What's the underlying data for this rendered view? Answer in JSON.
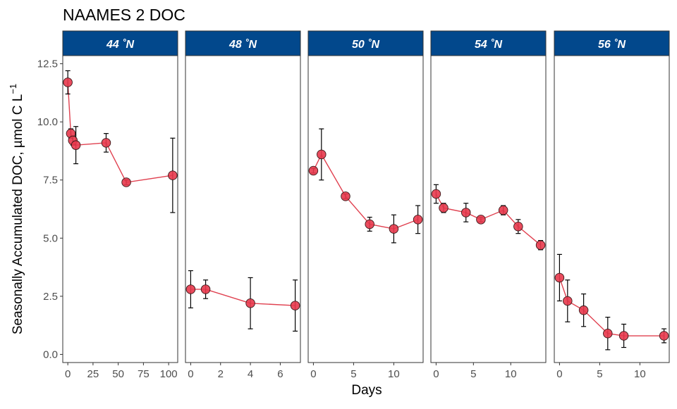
{
  "chart_data": {
    "type": "line",
    "title": "NAAMES 2 DOC",
    "xlabel": "Days",
    "ylabel": "Seasonally Accumulated DOC, µmol C L",
    "ylabel_exponent": "−1",
    "ylim": [
      -0.35,
      12.85
    ],
    "yticks": [
      0.0,
      2.5,
      5.0,
      7.5,
      10.0,
      12.5
    ],
    "ytick_labels": [
      "0.0",
      "2.5",
      "5.0",
      "7.5",
      "10.0",
      "12.5"
    ],
    "grid": false,
    "colors": {
      "strip_fill": "#02488c",
      "strip_text": "#ffffff",
      "line": "#e0404f",
      "point_fill": "#e8394d",
      "point_stroke": "#3a1a1a",
      "errorbar": "#000000",
      "panel_border": "#333333"
    },
    "facets": [
      {
        "label": "44 ˚N",
        "xlim": [
          -5,
          109
        ],
        "xticks": [
          0,
          25,
          50,
          75,
          100
        ],
        "points": [
          {
            "x": 0,
            "y": 11.7,
            "ymin": 11.2,
            "ymax": 12.2
          },
          {
            "x": 3,
            "y": 9.5,
            "ymin": 9.3,
            "ymax": 9.7
          },
          {
            "x": 5,
            "y": 9.2,
            "ymin": 9.0,
            "ymax": 9.4
          },
          {
            "x": 8,
            "y": 9.0,
            "ymin": 8.2,
            "ymax": 9.8
          },
          {
            "x": 38,
            "y": 9.1,
            "ymin": 8.7,
            "ymax": 9.5
          },
          {
            "x": 58,
            "y": 7.4,
            "ymin": 7.3,
            "ymax": 7.5
          },
          {
            "x": 104,
            "y": 7.7,
            "ymin": 6.1,
            "ymax": 9.3
          }
        ]
      },
      {
        "label": "48 ˚N",
        "xlim": [
          -0.35,
          7.35
        ],
        "xticks": [
          0,
          2,
          4,
          6
        ],
        "points": [
          {
            "x": 0,
            "y": 2.8,
            "ymin": 2.0,
            "ymax": 3.6
          },
          {
            "x": 1,
            "y": 2.8,
            "ymin": 2.4,
            "ymax": 3.2
          },
          {
            "x": 4,
            "y": 2.2,
            "ymin": 1.1,
            "ymax": 3.3
          },
          {
            "x": 7,
            "y": 2.1,
            "ymin": 1.0,
            "ymax": 3.2
          }
        ]
      },
      {
        "label": "50 ˚N",
        "xlim": [
          -0.65,
          13.65
        ],
        "xticks": [
          0,
          5,
          10
        ],
        "points": [
          {
            "x": 0,
            "y": 7.9,
            "ymin": 7.8,
            "ymax": 8.0
          },
          {
            "x": 1,
            "y": 8.6,
            "ymin": 7.5,
            "ymax": 9.7
          },
          {
            "x": 4,
            "y": 6.8,
            "ymin": 6.7,
            "ymax": 6.9
          },
          {
            "x": 7,
            "y": 5.6,
            "ymin": 5.3,
            "ymax": 5.9
          },
          {
            "x": 10,
            "y": 5.4,
            "ymin": 4.8,
            "ymax": 6.0
          },
          {
            "x": 13,
            "y": 5.8,
            "ymin": 5.2,
            "ymax": 6.4
          }
        ]
      },
      {
        "label": "54 ˚N",
        "xlim": [
          -0.7,
          14.7
        ],
        "xticks": [
          0,
          5,
          10
        ],
        "points": [
          {
            "x": 0,
            "y": 6.9,
            "ymin": 6.5,
            "ymax": 7.3
          },
          {
            "x": 1,
            "y": 6.3,
            "ymin": 6.1,
            "ymax": 6.5
          },
          {
            "x": 4,
            "y": 6.1,
            "ymin": 5.7,
            "ymax": 6.5
          },
          {
            "x": 6,
            "y": 5.8,
            "ymin": 5.7,
            "ymax": 5.9
          },
          {
            "x": 9,
            "y": 6.2,
            "ymin": 6.0,
            "ymax": 6.4
          },
          {
            "x": 11,
            "y": 5.5,
            "ymin": 5.2,
            "ymax": 5.8
          },
          {
            "x": 14,
            "y": 4.7,
            "ymin": 4.5,
            "ymax": 4.9
          }
        ]
      },
      {
        "label": "56 ˚N",
        "xlim": [
          -0.65,
          13.65
        ],
        "xticks": [
          0,
          5,
          10
        ],
        "points": [
          {
            "x": 0,
            "y": 3.3,
            "ymin": 2.3,
            "ymax": 4.3
          },
          {
            "x": 1,
            "y": 2.3,
            "ymin": 1.4,
            "ymax": 3.2
          },
          {
            "x": 3,
            "y": 1.9,
            "ymin": 1.2,
            "ymax": 2.6
          },
          {
            "x": 6,
            "y": 0.9,
            "ymin": 0.2,
            "ymax": 1.6
          },
          {
            "x": 8,
            "y": 0.8,
            "ymin": 0.3,
            "ymax": 1.3
          },
          {
            "x": 13,
            "y": 0.8,
            "ymin": 0.5,
            "ymax": 1.1
          }
        ]
      }
    ]
  }
}
